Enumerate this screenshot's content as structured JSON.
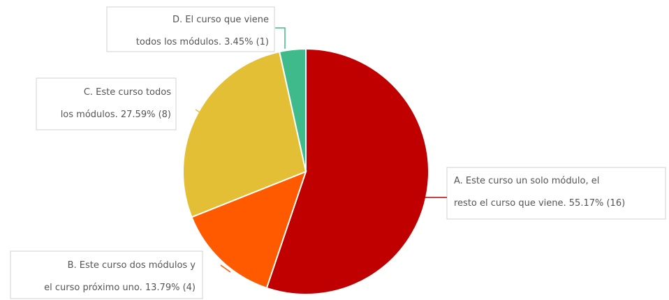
{
  "chart_data": {
    "type": "pie",
    "title": "",
    "slices": [
      {
        "label": "A. Este curso un solo módulo, el resto el curso que viene.",
        "lines": [
          "A. Este curso un solo módulo, el",
          "resto el curso que viene.  55.17% (16)"
        ],
        "percent": 55.17,
        "count": 16,
        "color": "#c00000"
      },
      {
        "label": "B. Este curso dos módulos y el curso próximo uno.",
        "lines": [
          "B. Este curso dos módulos y",
          "el curso próximo uno.  13.79% (4)"
        ],
        "percent": 13.79,
        "count": 4,
        "color": "#ff5a00"
      },
      {
        "label": "C. Este curso todos los módulos.",
        "lines": [
          "C. Este curso todos",
          "los módulos.  27.59% (8)"
        ],
        "percent": 27.59,
        "count": 8,
        "color": "#e3bf36"
      },
      {
        "label": "D. El curso que viene todos los módulos.",
        "lines": [
          "D. El curso que viene",
          "todos los módulos.  3.45% (1)"
        ],
        "percent": 3.45,
        "count": 1,
        "color": "#3fbb8b"
      }
    ],
    "start_angle": "12 o'clock",
    "direction": "clockwise",
    "legend": "none"
  }
}
